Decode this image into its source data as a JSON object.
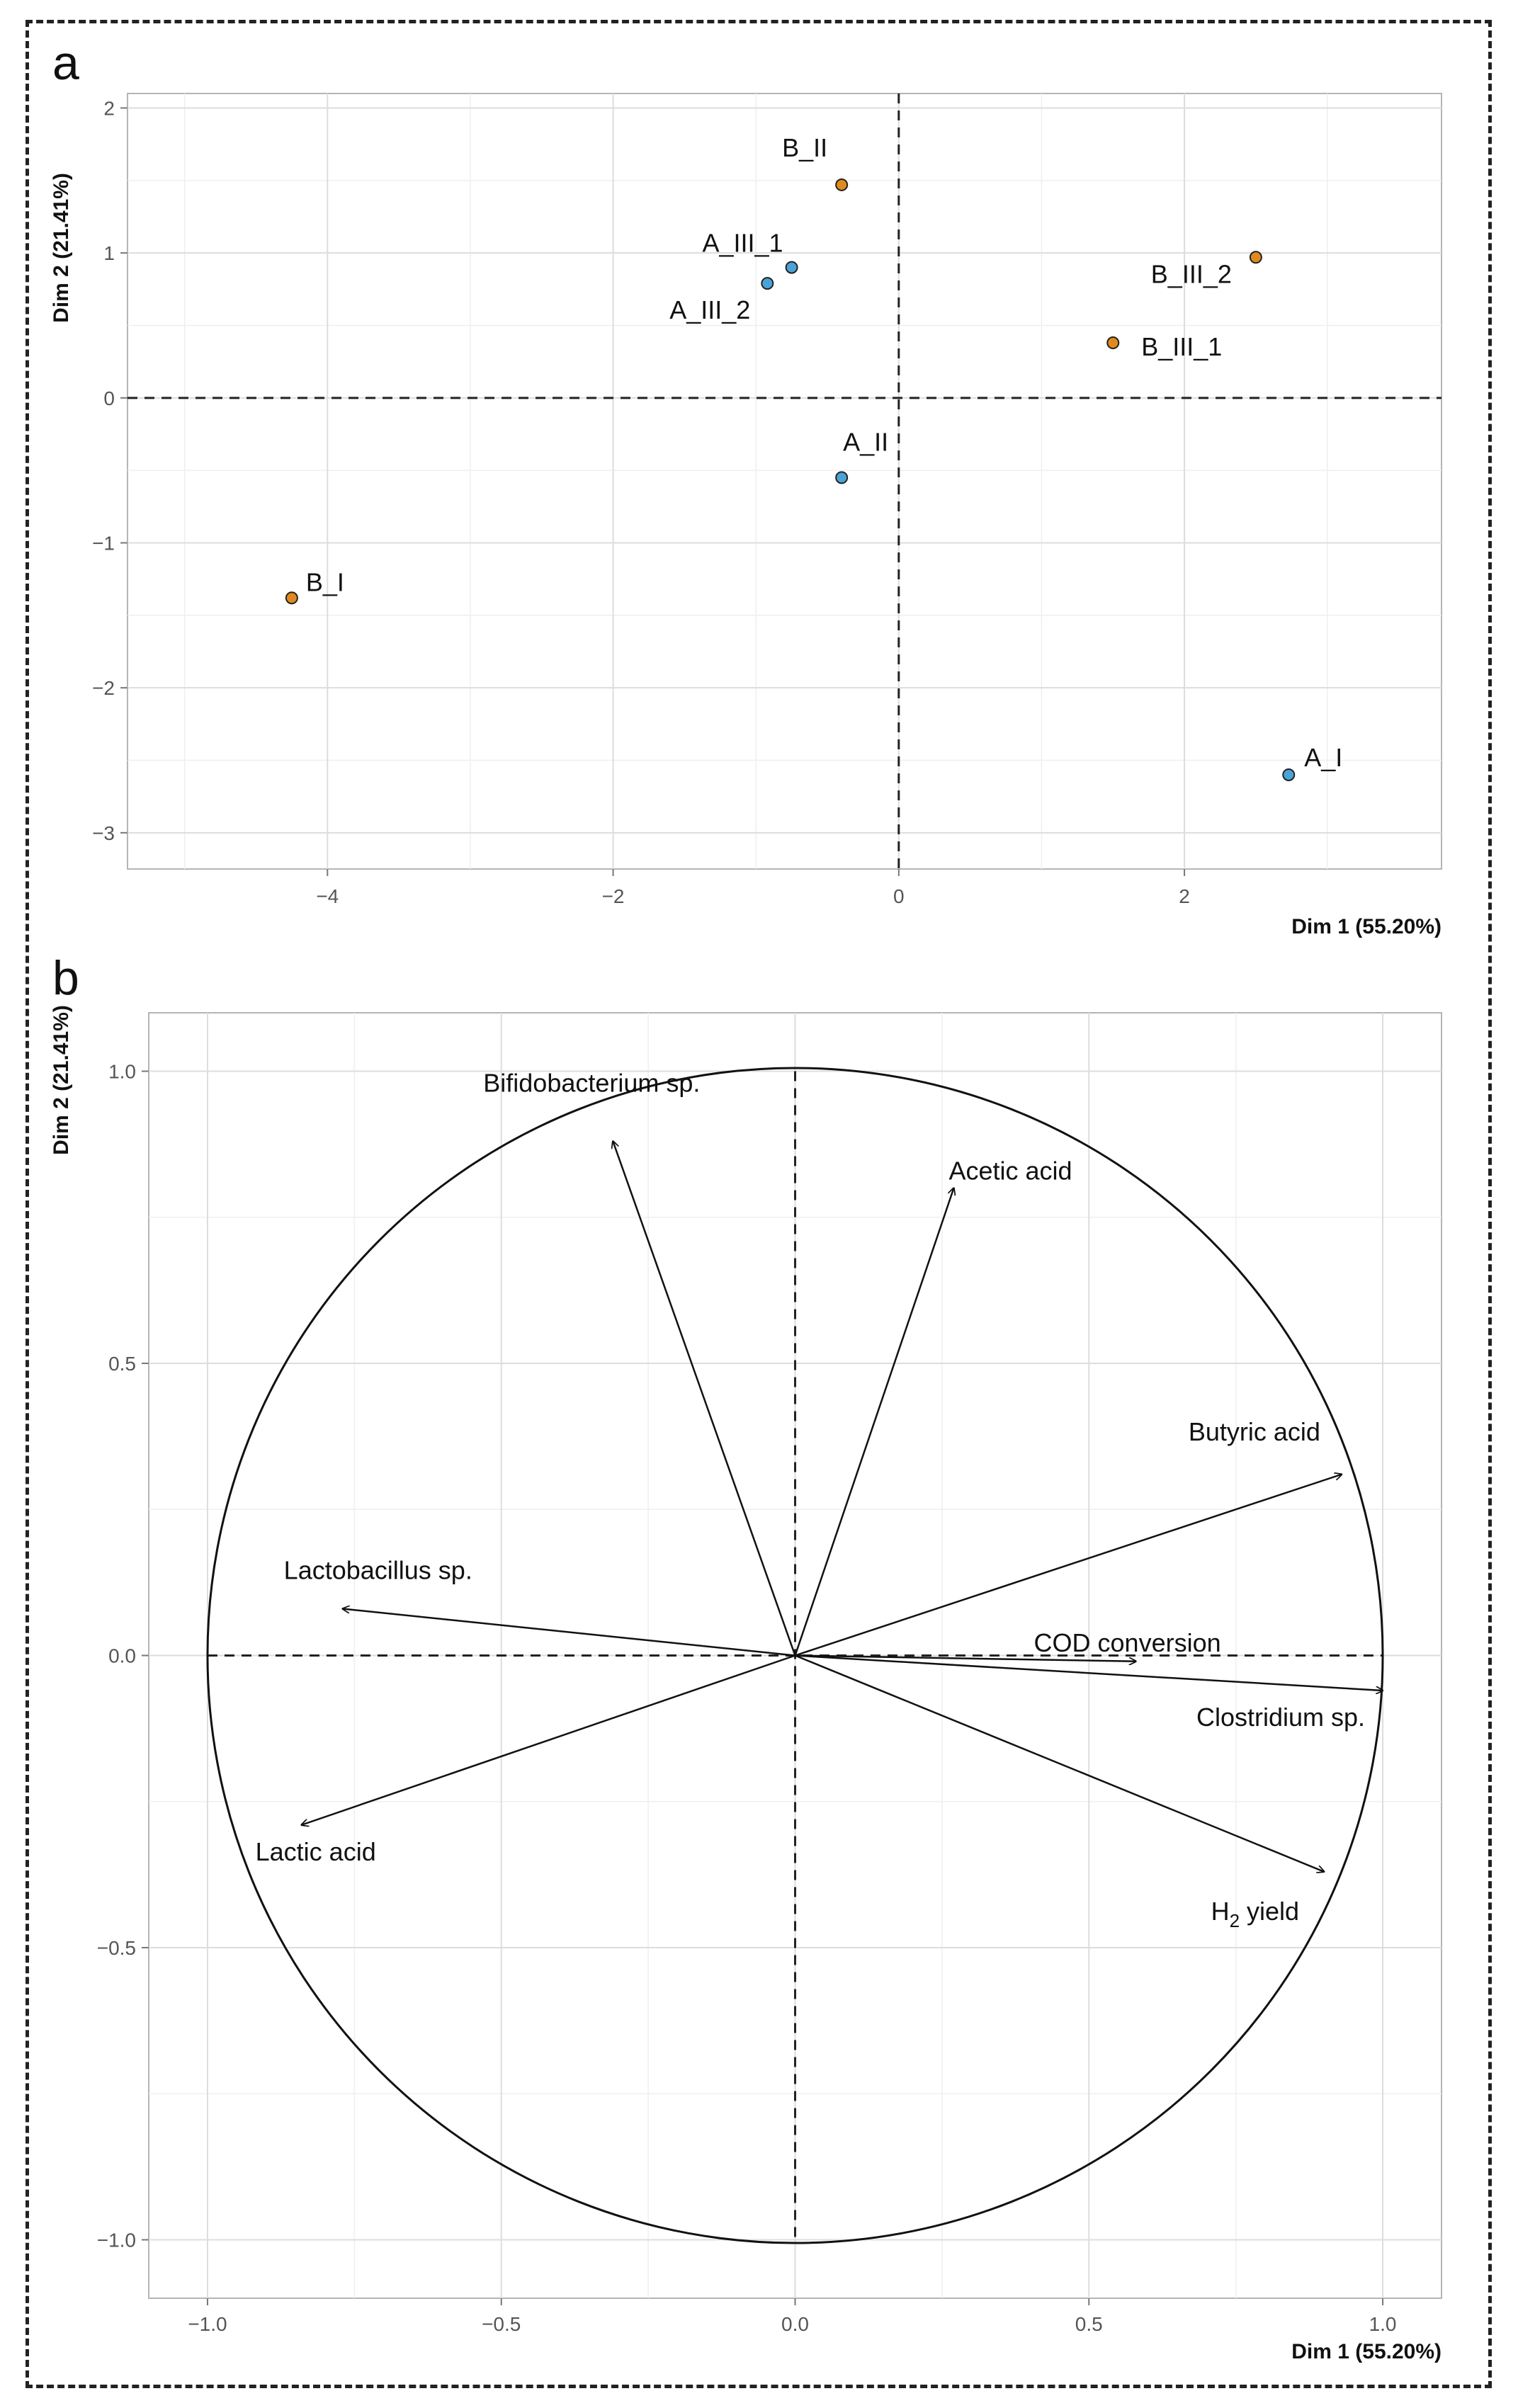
{
  "chart_data": [
    {
      "panel": "a",
      "type": "scatter",
      "title": "",
      "xlabel": "Dim 1 (55.20%)",
      "ylabel": "Dim 2 (21.41%)",
      "xlim": [
        -5.4,
        3.8
      ],
      "ylim": [
        -3.25,
        2.1
      ],
      "xticks": [
        "-4",
        "-2",
        "0",
        "2"
      ],
      "yticks": [
        "-3",
        "-2",
        "-1",
        "0",
        "1",
        "2"
      ],
      "grid": true,
      "reference_lines": {
        "x": 0,
        "y": 0,
        "style": "dashed"
      },
      "colors": {
        "A": "#4aa3d6",
        "B": "#e08a1e"
      },
      "points": [
        {
          "label": "B_II",
          "x": -0.4,
          "y": 1.47,
          "group": "B"
        },
        {
          "label": "A_III_1",
          "x": -0.75,
          "y": 0.9,
          "group": "A"
        },
        {
          "label": "A_III_2",
          "x": -0.92,
          "y": 0.79,
          "group": "A"
        },
        {
          "label": "B_III_2",
          "x": 2.5,
          "y": 0.97,
          "group": "B"
        },
        {
          "label": "B_III_1",
          "x": 1.5,
          "y": 0.38,
          "group": "B"
        },
        {
          "label": "A_II",
          "x": -0.4,
          "y": -0.55,
          "group": "A"
        },
        {
          "label": "B_I",
          "x": -4.25,
          "y": -1.38,
          "group": "B"
        },
        {
          "label": "A_I",
          "x": 2.73,
          "y": -2.6,
          "group": "A"
        }
      ]
    },
    {
      "panel": "b",
      "type": "variable-correlation-circle",
      "title": "",
      "xlabel": "Dim 1 (55.20%)",
      "ylabel": "Dim 2 (21.41%)",
      "xlim": [
        -1.1,
        1.1
      ],
      "ylim": [
        -1.1,
        1.1
      ],
      "xticks": [
        "-1.0",
        "-0.5",
        "0.0",
        "0.5",
        "1.0"
      ],
      "yticks": [
        "-1.0",
        "-0.5",
        "0.0",
        "0.5",
        "1.0"
      ],
      "grid": true,
      "reference_lines": {
        "x": 0,
        "y": 0,
        "style": "dashed"
      },
      "unit_circle": true,
      "vectors": [
        {
          "label": "Bifidobacterium sp.",
          "x": -0.31,
          "y": 0.88
        },
        {
          "label": "Acetic acid",
          "x": 0.27,
          "y": 0.8
        },
        {
          "label": "Butyric acid",
          "x": 0.93,
          "y": 0.31
        },
        {
          "label": "Lactobacillus sp.",
          "x": -0.77,
          "y": 0.08
        },
        {
          "label": "COD conversion",
          "x": 0.58,
          "y": -0.01
        },
        {
          "label": "Clostridium sp.",
          "x": 1.0,
          "y": -0.06
        },
        {
          "label": "Lactic acid",
          "x": -0.84,
          "y": -0.29
        },
        {
          "label": "H2 yield",
          "label_main": "H",
          "label_sub": "2",
          "label_rest": "yield",
          "x": 0.9,
          "y": -0.37
        }
      ]
    }
  ]
}
